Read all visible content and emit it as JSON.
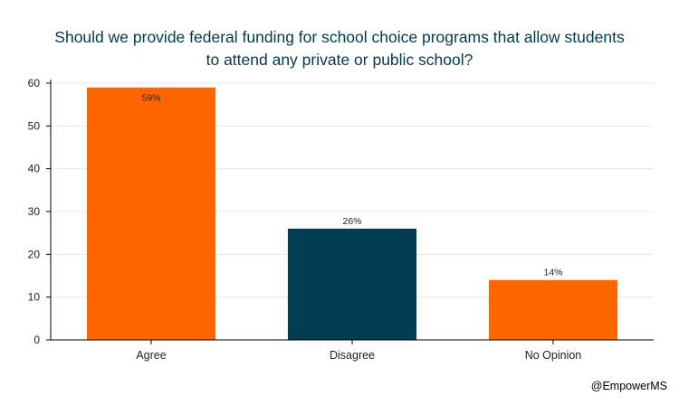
{
  "chart_data": {
    "type": "bar",
    "title_lines": [
      "Should we provide federal funding for school choice programs that allow students",
      "to attend any private or public school?"
    ],
    "categories": [
      "Agree",
      "Disagree",
      "No Opinion"
    ],
    "values": [
      59,
      26,
      14
    ],
    "data_labels": [
      "59%",
      "26%",
      "14%"
    ],
    "bar_colors": [
      "#ff6600",
      "#023d52",
      "#ff6600"
    ],
    "ylim": [
      0,
      60
    ],
    "yticks": [
      0,
      10,
      20,
      30,
      40,
      50,
      60
    ],
    "grid": true,
    "xlabel": "",
    "ylabel": ""
  },
  "footer": {
    "credit": "@EmpowerMS"
  },
  "colors": {
    "title": "#033a4a",
    "axis": "#000000",
    "grid": "#e6e6e6",
    "label": "#222222"
  }
}
